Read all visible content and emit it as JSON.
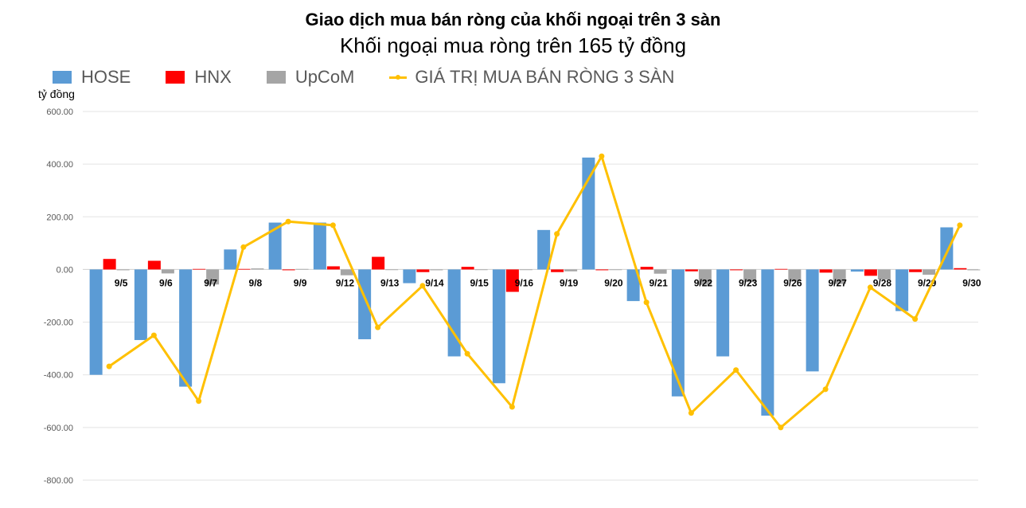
{
  "chart_data": {
    "type": "bar",
    "title": "Giao dịch mua bán ròng của khối ngoại trên 3 sàn",
    "subtitle": "Khối ngoại mua ròng trên 165 tỷ đồng",
    "ylabel": "tỷ đồng",
    "ylim": [
      -800,
      600
    ],
    "yticks": [
      "600.00",
      "400.00",
      "200.00",
      "0.00",
      "-200.00",
      "-400.00",
      "-600.00",
      "-800.00"
    ],
    "ytick_values": [
      600,
      400,
      200,
      0,
      -200,
      -400,
      -600,
      -800
    ],
    "grid": true,
    "legend_position": "top-left",
    "categories": [
      "9/5",
      "9/6",
      "9/7",
      "9/8",
      "9/9",
      "9/12",
      "9/13",
      "9/14",
      "9/15",
      "9/16",
      "9/19",
      "9/20",
      "9/21",
      "9/22",
      "9/23",
      "9/26",
      "9/27",
      "9/28",
      "9/29",
      "9/30"
    ],
    "series": [
      {
        "name": "HOSE",
        "type": "bar",
        "color": "#5B9BD5",
        "values": [
          -400,
          -268,
          -445,
          76,
          178,
          178,
          -265,
          -52,
          -330,
          -432,
          150,
          425,
          -120,
          -482,
          -330,
          -555,
          -387,
          -8,
          -158,
          160
        ]
      },
      {
        "name": "HNX",
        "type": "bar",
        "color": "#FF0000",
        "values": [
          40,
          33,
          2,
          2,
          -3,
          12,
          48,
          -10,
          10,
          -85,
          -10,
          -3,
          10,
          -7,
          -3,
          2,
          -12,
          -24,
          -10,
          5
        ]
      },
      {
        "name": "UpCoM",
        "type": "bar",
        "color": "#A5A5A5",
        "values": [
          -3,
          -15,
          -57,
          4,
          2,
          -22,
          0,
          -3,
          0,
          -2,
          -7,
          0,
          -16,
          -58,
          -48,
          -45,
          -55,
          -38,
          -20,
          -3
        ]
      },
      {
        "name": "GIÁ TRỊ MUA BÁN RÒNG 3 SÀN",
        "type": "line",
        "color": "#FFC000",
        "values": [
          -368,
          -250,
          -500,
          85,
          182,
          168,
          -220,
          -62,
          -320,
          -522,
          135,
          430,
          -125,
          -545,
          -382,
          -600,
          -455,
          -68,
          -188,
          168
        ]
      }
    ]
  }
}
